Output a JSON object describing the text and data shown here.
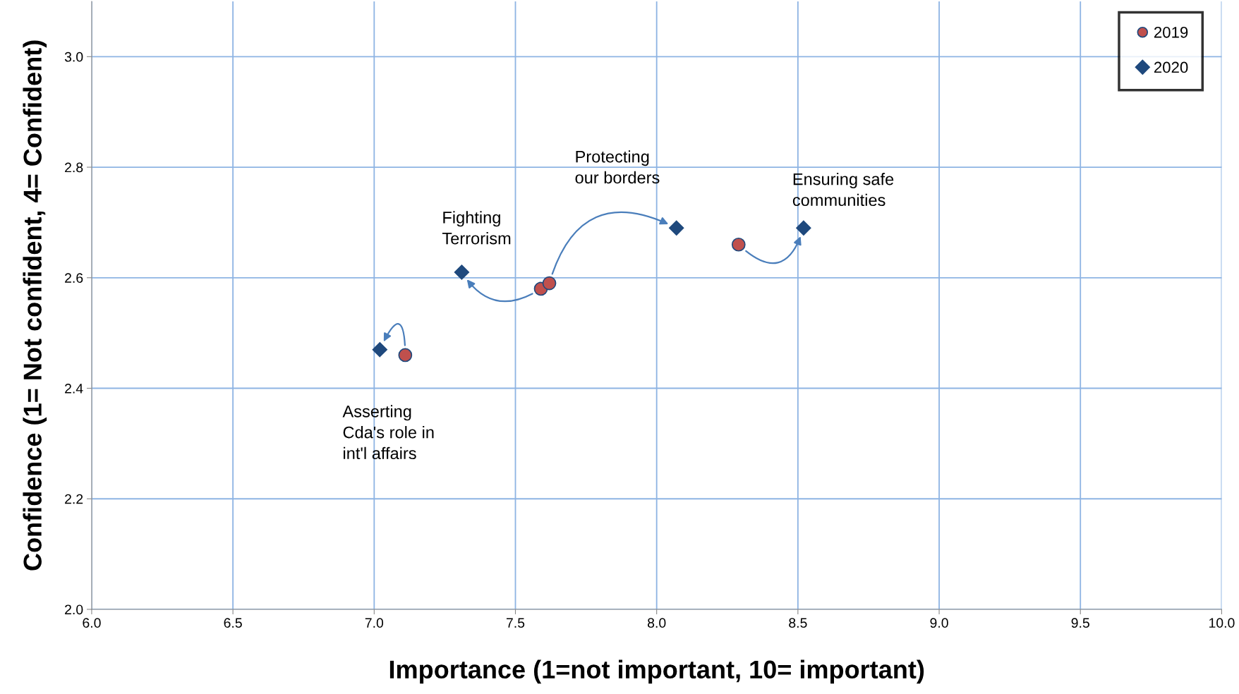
{
  "chart_data": {
    "type": "scatter",
    "xlabel": "Importance (1=not important, 10= important)",
    "ylabel": "Confidence (1= Not confident, 4= Confident)",
    "series": [
      {
        "name": "2019",
        "color": "#c0504d",
        "marker": "circle",
        "x": [
          7.11,
          7.59,
          7.62,
          8.29
        ],
        "values": [
          2.46,
          2.58,
          2.59,
          2.66
        ]
      },
      {
        "name": "2020",
        "color": "#1f497d",
        "marker": "diamond",
        "x": [
          7.02,
          7.31,
          8.07,
          8.52
        ],
        "values": [
          2.47,
          2.61,
          2.69,
          2.69
        ]
      }
    ],
    "annotations": [
      "Asserting\nCda's role in\nint'l affairs",
      "Fighting\nTerrorism",
      "Protecting\nour borders",
      "Ensuring safe\ncommunities"
    ],
    "xlim": [
      6.0,
      10.0
    ],
    "xticks": [
      {
        "value": 6.0,
        "label": "6.0"
      },
      {
        "value": 6.5,
        "label": "6.5"
      },
      {
        "value": 7.0,
        "label": "7.0"
      },
      {
        "value": 7.5,
        "label": "7.5"
      },
      {
        "value": 8.0,
        "label": "8.0"
      },
      {
        "value": 8.5,
        "label": "8.5"
      },
      {
        "value": 9.0,
        "label": "9.0"
      },
      {
        "value": 9.5,
        "label": "9.5"
      },
      {
        "value": 10.0,
        "label": "10.0"
      }
    ],
    "ylim": [
      2.0,
      3.1
    ],
    "yticks": [
      {
        "value": 2.0,
        "label": "2.0"
      },
      {
        "value": 2.2,
        "label": "2.2"
      },
      {
        "value": 2.4,
        "label": "2.4"
      },
      {
        "value": 2.6,
        "label": "2.6"
      },
      {
        "value": 2.8,
        "label": "2.8"
      },
      {
        "value": 3.0,
        "label": "3.0"
      }
    ],
    "grid": true,
    "legend": "top right"
  }
}
